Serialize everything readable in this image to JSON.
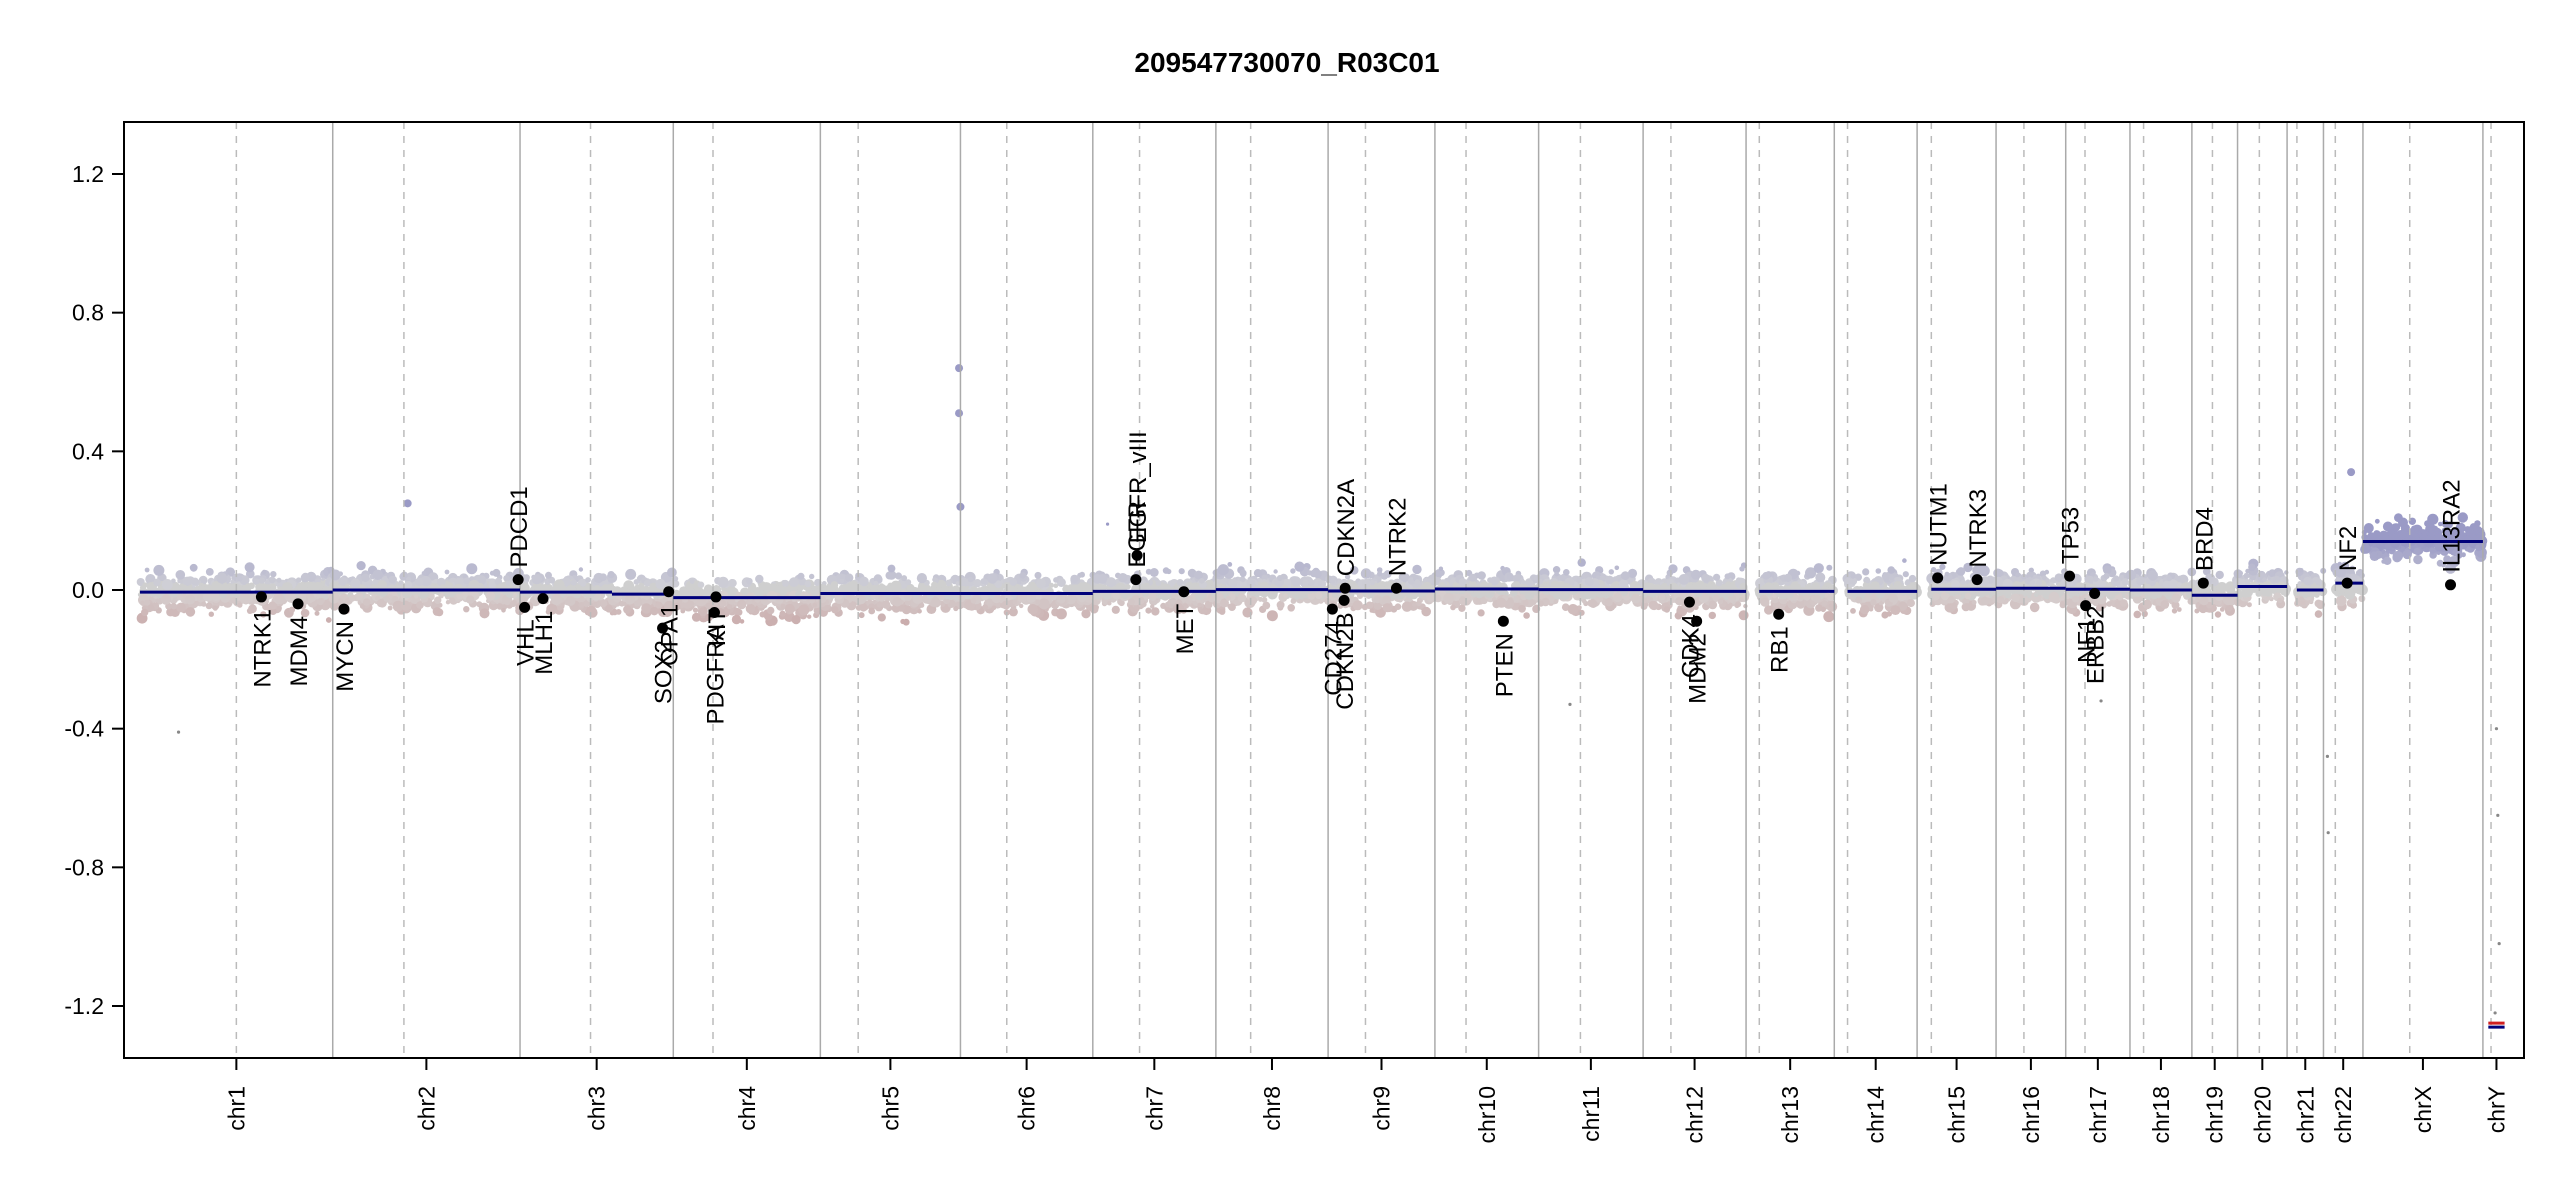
{
  "chart_data": {
    "type": "scatter",
    "title": "209547730070_R03C01",
    "xlabel": "",
    "ylabel": "",
    "ylim": [
      -1.35,
      1.35
    ],
    "y_ticks": [
      "1.2",
      "0.8",
      "0.4",
      "0.0",
      "-0.4",
      "-0.8",
      "-1.2"
    ],
    "y_tick_values": [
      1.2,
      0.8,
      0.4,
      0.0,
      -0.4,
      -0.8,
      -1.2
    ],
    "grid": false,
    "legend": "none",
    "colors": {
      "gain": "#9a9ac6",
      "loss": "#c49a9a",
      "neutral": "#cfcfcf",
      "segment": "#00007a",
      "gene_point": "#000000",
      "chrom_boundary": "#aaaaaa",
      "centromere": "#bbbbbb"
    },
    "chromosomes": [
      {
        "name": "chr1",
        "length": 249,
        "centromere": 0.5,
        "segments": [
          {
            "start": 0,
            "end": 1,
            "value": -0.006
          }
        ]
      },
      {
        "name": "chr2",
        "length": 242,
        "centromere": 0.38,
        "segments": [
          {
            "start": 0,
            "end": 1,
            "value": 0.0
          }
        ]
      },
      {
        "name": "chr3",
        "length": 198,
        "centromere": 0.46,
        "segments": [
          {
            "start": 0,
            "end": 0.6,
            "value": -0.006
          },
          {
            "start": 0.6,
            "end": 1,
            "value": -0.012
          }
        ]
      },
      {
        "name": "chr4",
        "length": 190,
        "centromere": 0.27,
        "segments": [
          {
            "start": 0,
            "end": 1,
            "value": -0.022
          }
        ]
      },
      {
        "name": "chr5",
        "length": 181,
        "centromere": 0.27,
        "segments": [
          {
            "start": 0,
            "end": 1,
            "value": -0.01
          }
        ]
      },
      {
        "name": "chr6",
        "length": 171,
        "centromere": 0.35,
        "segments": [
          {
            "start": 0,
            "end": 1,
            "value": -0.01
          }
        ]
      },
      {
        "name": "chr7",
        "length": 159,
        "centromere": 0.38,
        "segments": [
          {
            "start": 0,
            "end": 1,
            "value": -0.004
          }
        ]
      },
      {
        "name": "chr8",
        "length": 145,
        "centromere": 0.31,
        "segments": [
          {
            "start": 0,
            "end": 1,
            "value": 0.001
          }
        ]
      },
      {
        "name": "chr9",
        "length": 138,
        "centromere": 0.35,
        "segments": [
          {
            "start": 0,
            "end": 1,
            "value": -0.003
          }
        ]
      },
      {
        "name": "chr10",
        "length": 134,
        "centromere": 0.3,
        "segments": [
          {
            "start": 0,
            "end": 1,
            "value": 0.003
          }
        ]
      },
      {
        "name": "chr11",
        "length": 135,
        "centromere": 0.4,
        "segments": [
          {
            "start": 0,
            "end": 1,
            "value": 0.001
          }
        ]
      },
      {
        "name": "chr12",
        "length": 133,
        "centromere": 0.27,
        "segments": [
          {
            "start": 0,
            "end": 1,
            "value": -0.004
          }
        ]
      },
      {
        "name": "chr13",
        "length": 114,
        "centromere": 0.15,
        "segments": [
          {
            "start": 0.15,
            "end": 1,
            "value": -0.004
          }
        ]
      },
      {
        "name": "chr14",
        "length": 107,
        "centromere": 0.16,
        "segments": [
          {
            "start": 0.16,
            "end": 1,
            "value": -0.004
          }
        ]
      },
      {
        "name": "chr15",
        "length": 102,
        "centromere": 0.18,
        "segments": [
          {
            "start": 0.18,
            "end": 1,
            "value": 0.002
          }
        ]
      },
      {
        "name": "chr16",
        "length": 90,
        "centromere": 0.4,
        "segments": [
          {
            "start": 0,
            "end": 1,
            "value": 0.005
          }
        ]
      },
      {
        "name": "chr17",
        "length": 83,
        "centromere": 0.3,
        "segments": [
          {
            "start": 0,
            "end": 1,
            "value": 0.002
          }
        ]
      },
      {
        "name": "chr18",
        "length": 80,
        "centromere": 0.22,
        "segments": [
          {
            "start": 0,
            "end": 1,
            "value": 0.0
          }
        ]
      },
      {
        "name": "chr19",
        "length": 59,
        "centromere": 0.45,
        "segments": [
          {
            "start": 0,
            "end": 1,
            "value": -0.015
          }
        ]
      },
      {
        "name": "chr20",
        "length": 64,
        "centromere": 0.44,
        "segments": [
          {
            "start": 0,
            "end": 1,
            "value": 0.01
          }
        ]
      },
      {
        "name": "chr21",
        "length": 47,
        "centromere": 0.27,
        "segments": [
          {
            "start": 0.27,
            "end": 1,
            "value": 0.0
          }
        ]
      },
      {
        "name": "chr22",
        "length": 51,
        "centromere": 0.3,
        "segments": [
          {
            "start": 0.3,
            "end": 1,
            "value": 0.02
          }
        ]
      },
      {
        "name": "chrX",
        "length": 155,
        "centromere": 0.39,
        "segments": [
          {
            "start": 0,
            "end": 1,
            "value": 0.14
          }
        ]
      },
      {
        "name": "chrY",
        "length": 35,
        "centromere": 0.3,
        "segments": [
          {
            "start": 0.2,
            "end": 0.8,
            "value": -1.255
          }
        ]
      }
    ],
    "genes": [
      {
        "name": "NTRK1",
        "chrom": "chr1",
        "pos": 0.63,
        "value": -0.02,
        "label_side": "below"
      },
      {
        "name": "MDM4",
        "chrom": "chr1",
        "pos": 0.82,
        "value": -0.04,
        "label_side": "below"
      },
      {
        "name": "MYCN",
        "chrom": "chr2",
        "pos": 0.06,
        "value": -0.055,
        "label_side": "below"
      },
      {
        "name": "PDCD1",
        "chrom": "chr2",
        "pos": 0.99,
        "value": 0.03,
        "label_side": "above"
      },
      {
        "name": "VHL",
        "chrom": "chr3",
        "pos": 0.03,
        "value": -0.05,
        "label_side": "below"
      },
      {
        "name": "MLH1",
        "chrom": "chr3",
        "pos": 0.15,
        "value": -0.025,
        "label_side": "below"
      },
      {
        "name": "SOX2",
        "chrom": "chr3",
        "pos": 0.93,
        "value": -0.11,
        "label_side": "below"
      },
      {
        "name": "OPA1",
        "chrom": "chr3",
        "pos": 0.97,
        "value": -0.005,
        "label_side": "below"
      },
      {
        "name": "PDGFRA",
        "chrom": "chr4",
        "pos": 0.28,
        "value": -0.065,
        "label_side": "below"
      },
      {
        "name": "KIT",
        "chrom": "chr4",
        "pos": 0.29,
        "value": -0.02,
        "label_side": "below"
      },
      {
        "name": "EGFR_vIII",
        "chrom": "chr7",
        "pos": 0.36,
        "value": 0.1,
        "label_side": "above"
      },
      {
        "name": "EGFR",
        "chrom": "chr7",
        "pos": 0.35,
        "value": 0.03,
        "label_side": "above"
      },
      {
        "name": "MET",
        "chrom": "chr7",
        "pos": 0.74,
        "value": -0.005,
        "label_side": "below"
      },
      {
        "name": "CD274",
        "chrom": "chr9",
        "pos": 0.04,
        "value": -0.055,
        "label_side": "below"
      },
      {
        "name": "CDKN2B",
        "chrom": "chr9",
        "pos": 0.15,
        "value": -0.03,
        "label_side": "below"
      },
      {
        "name": "CDKN2A",
        "chrom": "chr9",
        "pos": 0.16,
        "value": 0.005,
        "label_side": "above"
      },
      {
        "name": "NTRK2",
        "chrom": "chr9",
        "pos": 0.64,
        "value": 0.005,
        "label_side": "above"
      },
      {
        "name": "PTEN",
        "chrom": "chr10",
        "pos": 0.66,
        "value": -0.09,
        "label_side": "below"
      },
      {
        "name": "CDK4",
        "chrom": "chr12",
        "pos": 0.45,
        "value": -0.035,
        "label_side": "below"
      },
      {
        "name": "MDM2",
        "chrom": "chr12",
        "pos": 0.52,
        "value": -0.09,
        "label_side": "below"
      },
      {
        "name": "RB1",
        "chrom": "chr13",
        "pos": 0.37,
        "value": -0.07,
        "label_side": "below"
      },
      {
        "name": "NUTM1",
        "chrom": "chr15",
        "pos": 0.26,
        "value": 0.035,
        "label_side": "above"
      },
      {
        "name": "NTRK3",
        "chrom": "chr15",
        "pos": 0.76,
        "value": 0.03,
        "label_side": "above"
      },
      {
        "name": "TP53",
        "chrom": "chr17",
        "pos": 0.06,
        "value": 0.04,
        "label_side": "above"
      },
      {
        "name": "NF1",
        "chrom": "chr17",
        "pos": 0.31,
        "value": -0.045,
        "label_side": "below"
      },
      {
        "name": "ERBB2",
        "chrom": "chr17",
        "pos": 0.45,
        "value": -0.01,
        "label_side": "below"
      },
      {
        "name": "BRD4",
        "chrom": "chr19",
        "pos": 0.25,
        "value": 0.02,
        "label_side": "above"
      },
      {
        "name": "NF2",
        "chrom": "chr22",
        "pos": 0.6,
        "value": 0.02,
        "label_side": "above"
      },
      {
        "name": "IL13RA2",
        "chrom": "chrX",
        "pos": 0.73,
        "value": 0.015,
        "label_side": "above"
      }
    ],
    "outliers": [
      {
        "chrom": "chr5",
        "pos": 0.99,
        "value": 0.64
      },
      {
        "chrom": "chr5",
        "pos": 0.99,
        "value": 0.51
      },
      {
        "chrom": "chr5",
        "pos": 1.0,
        "value": 0.24
      },
      {
        "chrom": "chr2",
        "pos": 0.4,
        "value": 0.25
      },
      {
        "chrom": "chr7",
        "pos": 0.12,
        "value": 0.19
      },
      {
        "chrom": "chr22",
        "pos": 0.7,
        "value": 0.34
      },
      {
        "chrom": "chr1",
        "pos": 0.2,
        "value": -0.41
      },
      {
        "chrom": "chr11",
        "pos": 0.3,
        "value": -0.33
      },
      {
        "chrom": "chr17",
        "pos": 0.55,
        "value": -0.32
      },
      {
        "chrom": "chr22",
        "pos": 0.1,
        "value": -0.48
      },
      {
        "chrom": "chr22",
        "pos": 0.12,
        "value": -0.7
      },
      {
        "chrom": "chrY",
        "pos": 0.5,
        "value": -0.4
      },
      {
        "chrom": "chrY",
        "pos": 0.55,
        "value": -0.65
      },
      {
        "chrom": "chrY",
        "pos": 0.6,
        "value": -1.02
      },
      {
        "chrom": "chrY",
        "pos": 0.45,
        "value": -1.22
      }
    ]
  }
}
